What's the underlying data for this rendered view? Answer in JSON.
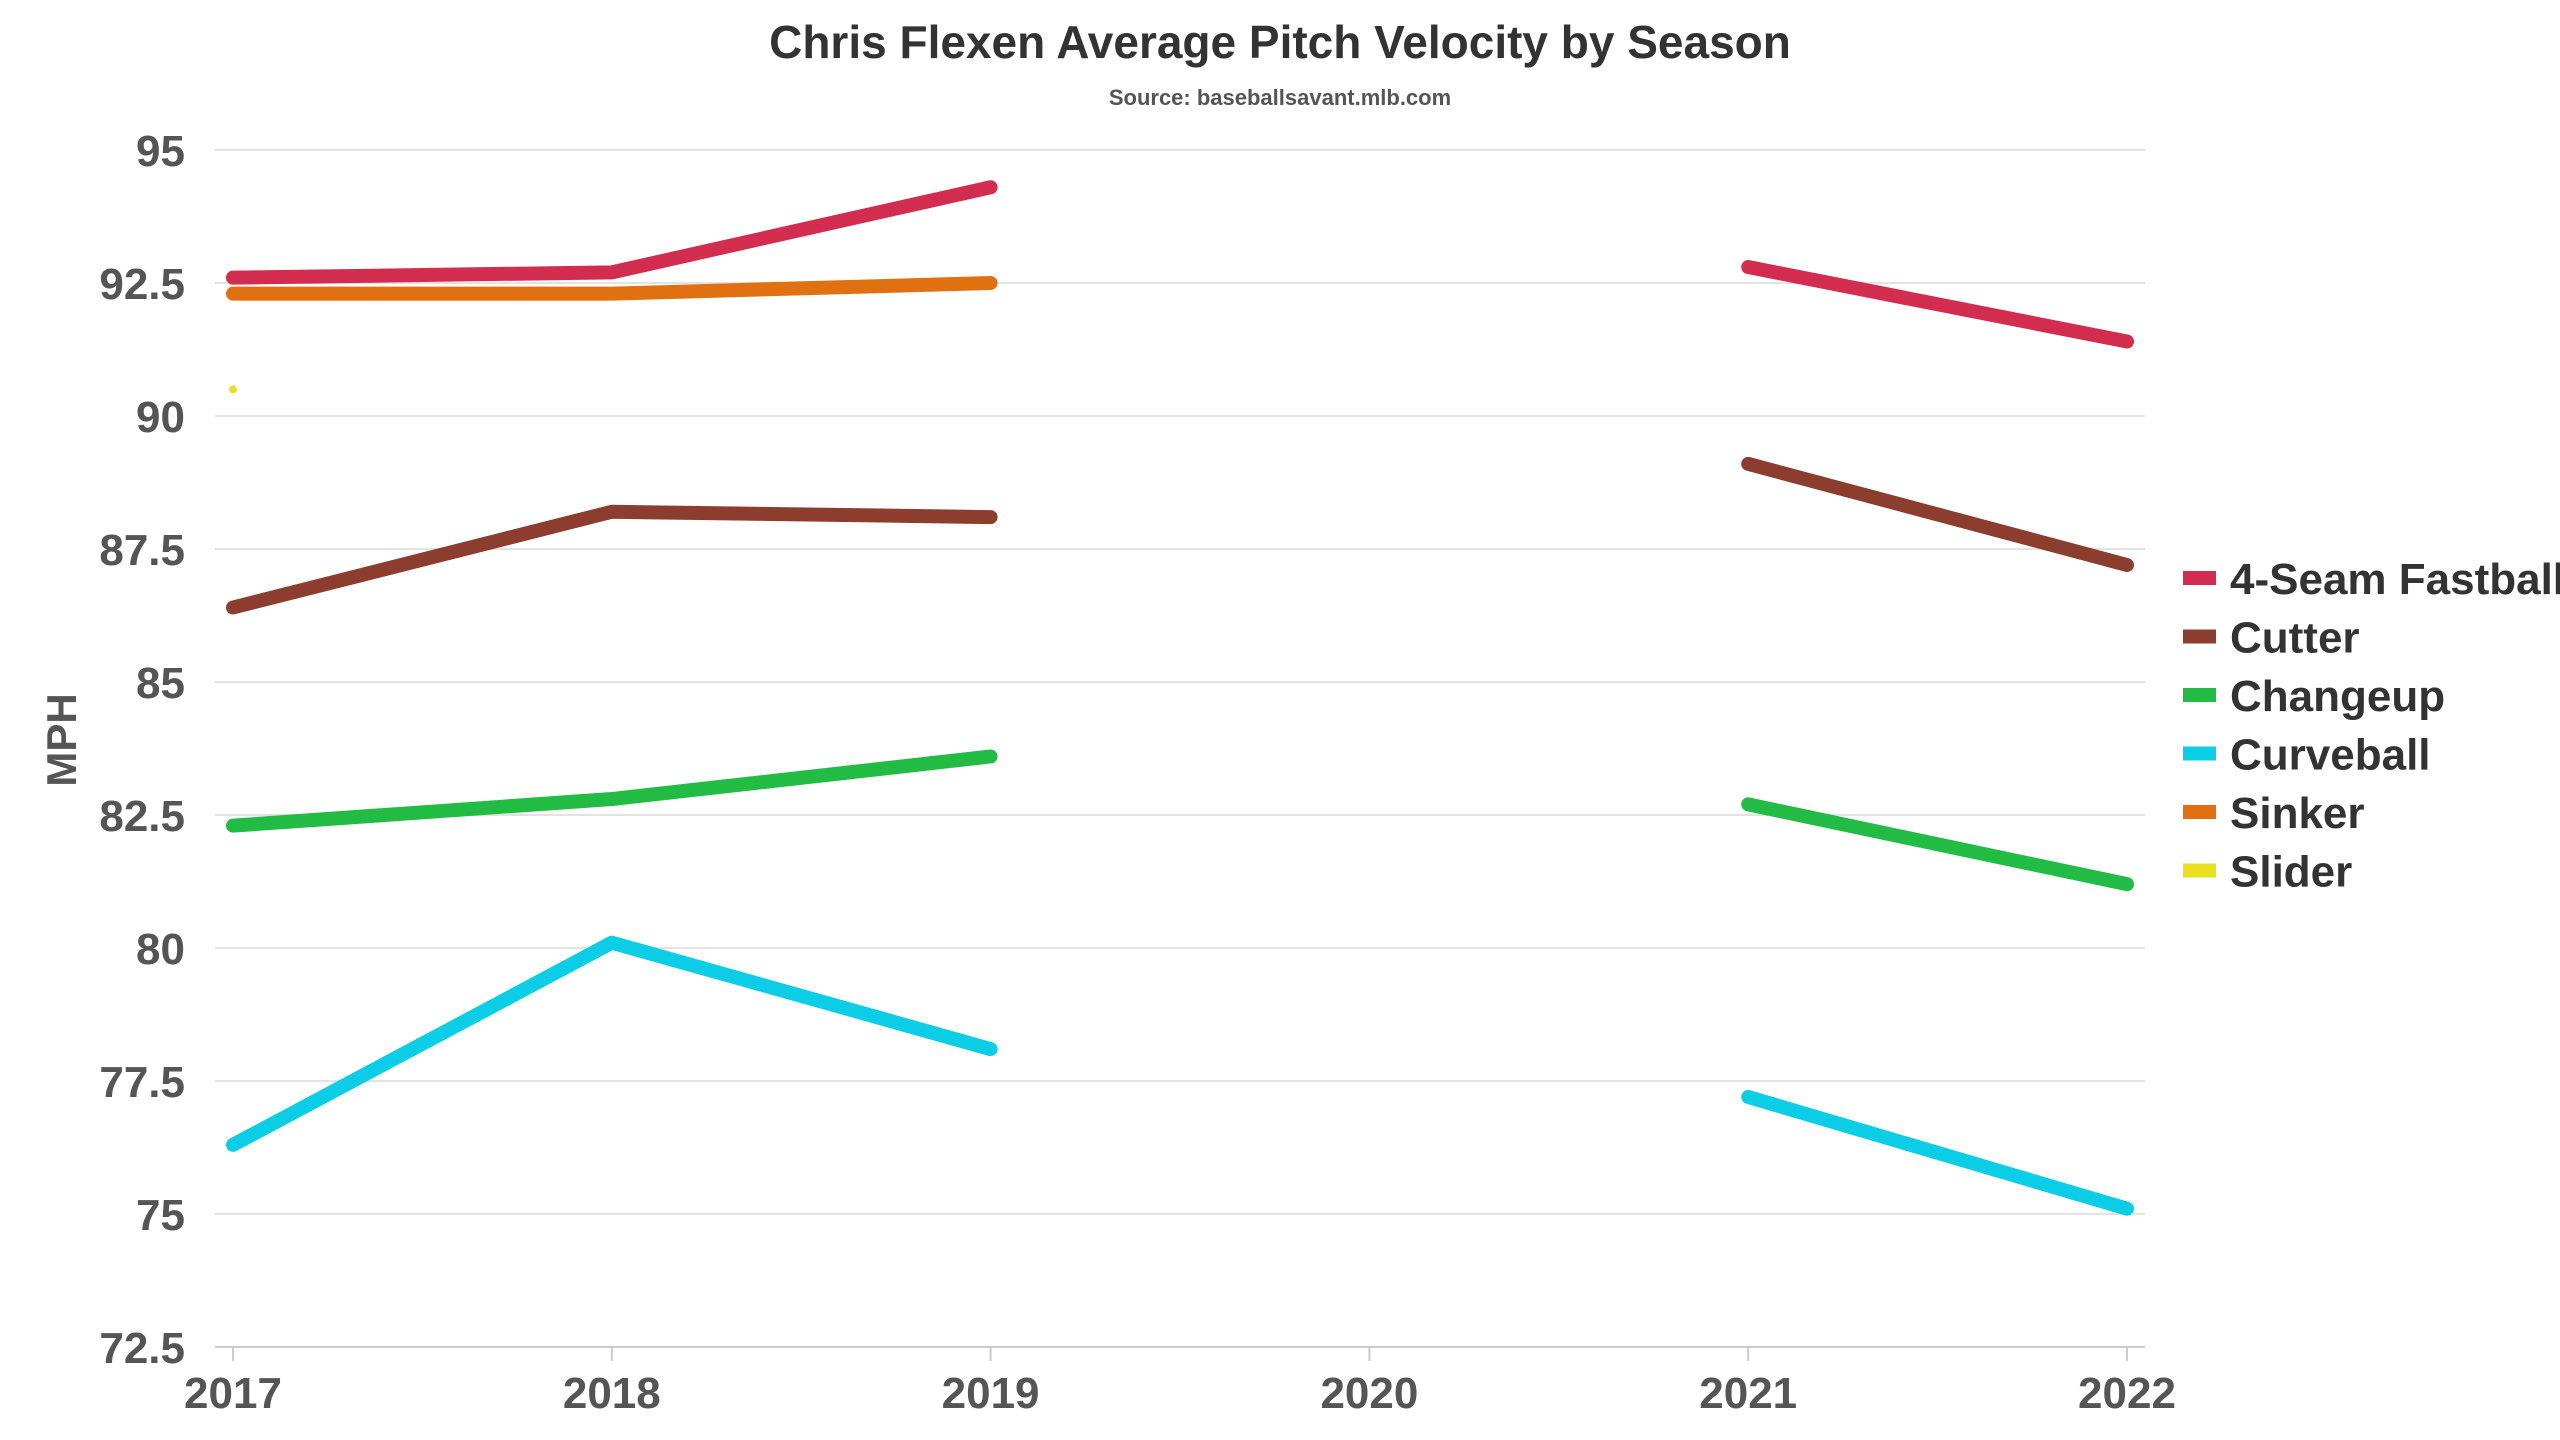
{
  "chart_data": {
    "type": "line",
    "title": "Chris Flexen Average Pitch Velocity by Season",
    "subtitle": "Source: baseballsavant.mlb.com",
    "xlabel": "",
    "ylabel": "MPH",
    "x": [
      2017,
      2018,
      2019,
      2020,
      2021,
      2022
    ],
    "ylim": [
      72.5,
      95
    ],
    "yticks": [
      72.5,
      75,
      77.5,
      80,
      82.5,
      85,
      87.5,
      90,
      92.5,
      95
    ],
    "ytick_labels": [
      "72.5",
      "75",
      "77.5",
      "80",
      "82.5",
      "85",
      "87.5",
      "90",
      "92.5",
      "95"
    ],
    "xtick_labels": [
      "2017",
      "2018",
      "2019",
      "2020",
      "2021",
      "2022"
    ],
    "grid": true,
    "legend_position": "right",
    "series": [
      {
        "name": "4-Seam Fastball",
        "color": "#d22d4e",
        "values": [
          92.6,
          92.7,
          94.3,
          null,
          92.8,
          91.4
        ]
      },
      {
        "name": "Cutter",
        "color": "#8c3e2e",
        "values": [
          86.4,
          88.2,
          88.1,
          null,
          89.1,
          87.2
        ]
      },
      {
        "name": "Changeup",
        "color": "#22bb44",
        "values": [
          82.3,
          82.8,
          83.6,
          null,
          82.7,
          81.2
        ]
      },
      {
        "name": "Curveball",
        "color": "#0ccde6",
        "values": [
          76.3,
          80.1,
          78.1,
          null,
          77.2,
          75.1
        ]
      },
      {
        "name": "Sinker",
        "color": "#e07010",
        "values": [
          92.3,
          92.3,
          92.5,
          null,
          null,
          null
        ]
      },
      {
        "name": "Slider",
        "color": "#e8e020",
        "values": [
          90.5,
          null,
          null,
          null,
          null,
          null
        ]
      }
    ]
  }
}
